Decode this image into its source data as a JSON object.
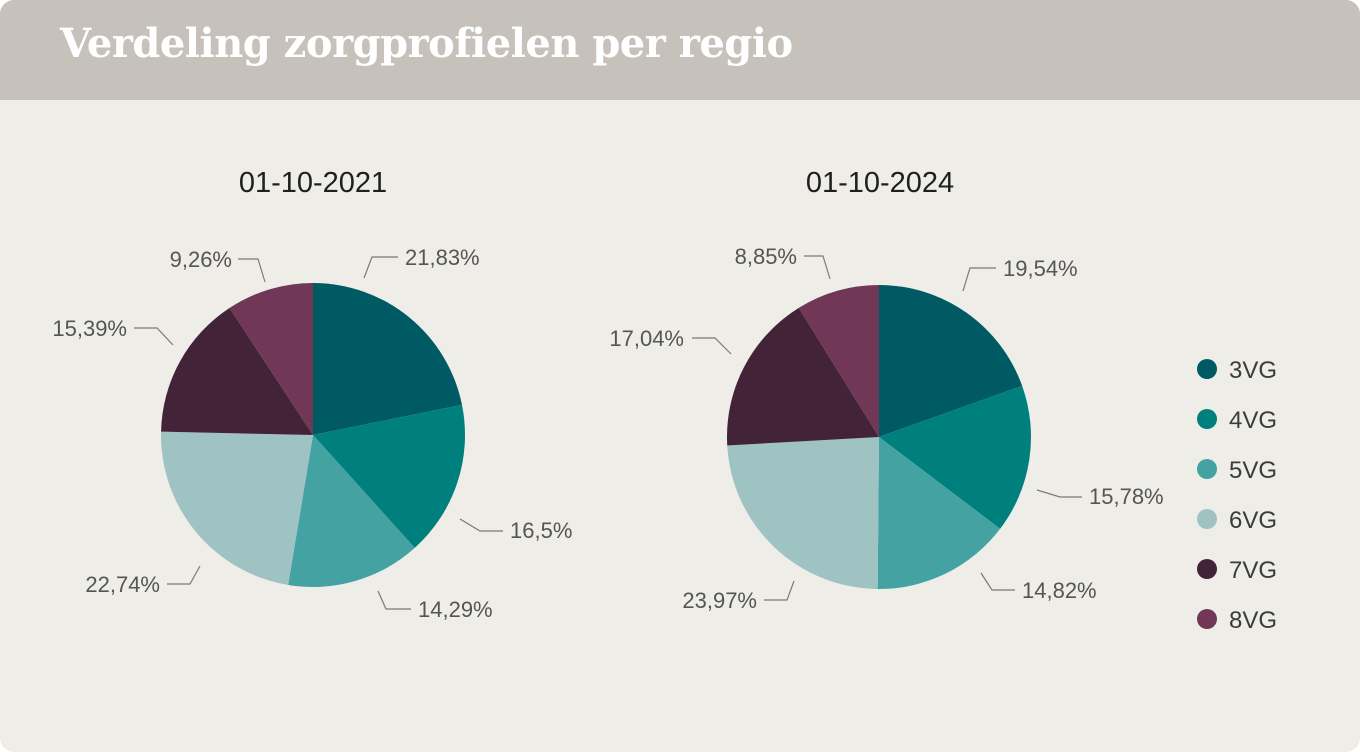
{
  "header": {
    "title": "Verdeling zorgprofielen per regio"
  },
  "chart_data": [
    {
      "type": "pie",
      "title": "01-10-2021",
      "categories": [
        "3VG",
        "4VG",
        "5VG",
        "6VG",
        "7VG",
        "8VG"
      ],
      "values": [
        21.83,
        16.5,
        14.29,
        22.74,
        15.39,
        9.26
      ],
      "labels": [
        "21,83%",
        "16,5%",
        "14,29%",
        "22,74%",
        "15,39%",
        "9,26%"
      ]
    },
    {
      "type": "pie",
      "title": "01-10-2024",
      "categories": [
        "3VG",
        "4VG",
        "5VG",
        "6VG",
        "7VG",
        "8VG"
      ],
      "values": [
        19.54,
        15.78,
        14.82,
        23.97,
        17.04,
        8.85
      ],
      "labels": [
        "19,54%",
        "15,78%",
        "14,82%",
        "23,97%",
        "17,04%",
        "8,85%"
      ]
    }
  ],
  "legend": {
    "position": "right",
    "items": [
      {
        "label": "3VG",
        "color": "#005a63"
      },
      {
        "label": "4VG",
        "color": "#00807d"
      },
      {
        "label": "5VG",
        "color": "#44a3a2"
      },
      {
        "label": "6VG",
        "color": "#9fc2c3"
      },
      {
        "label": "7VG",
        "color": "#432337"
      },
      {
        "label": "8VG",
        "color": "#703856"
      }
    ]
  }
}
